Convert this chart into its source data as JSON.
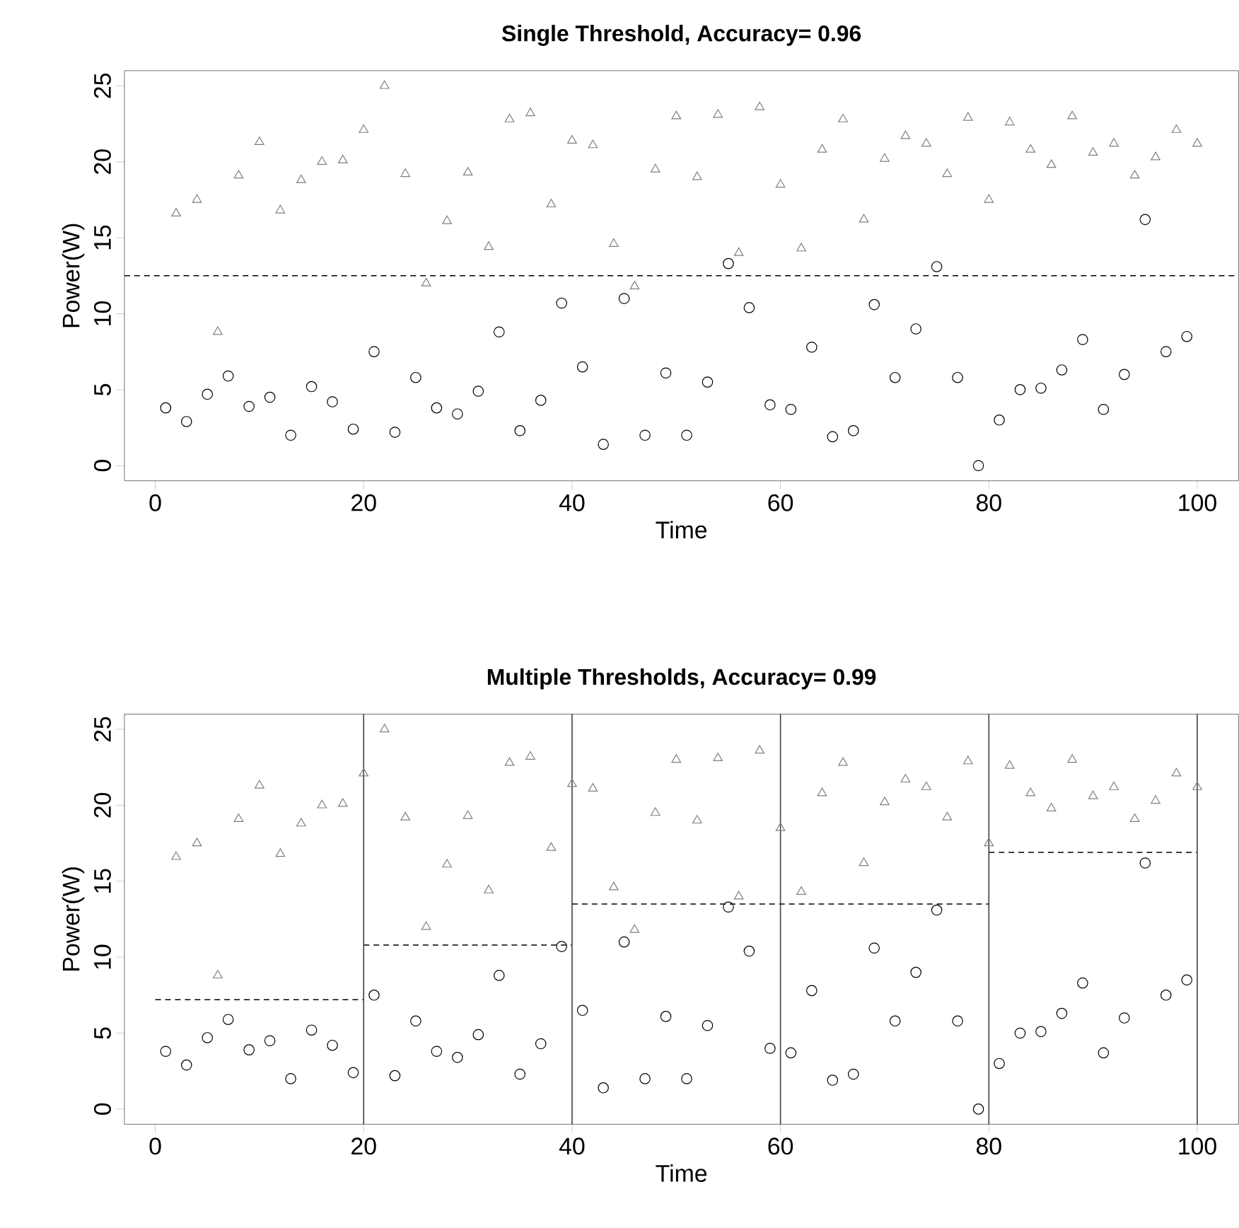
{
  "chart_data": [
    {
      "type": "scatter",
      "title": "Single Threshold, Accuracy= 0.96",
      "xlabel": "Time",
      "ylabel": "Power(W)",
      "xlim": [
        -2.96,
        103.96
      ],
      "ylim": [
        -1,
        26
      ],
      "xticks": [
        0,
        20,
        40,
        60,
        80,
        100
      ],
      "yticks": [
        0,
        5,
        10,
        15,
        20,
        25
      ],
      "series": [
        {
          "color": "#000000",
          "marker": "circle",
          "x": [
            1,
            3,
            5,
            7,
            9,
            11,
            13,
            15,
            17,
            19,
            21,
            23,
            25,
            27,
            29,
            31,
            33,
            35,
            37,
            39,
            41,
            43,
            45,
            47,
            49,
            51,
            53,
            55,
            57,
            59,
            61,
            63,
            65,
            67,
            69,
            71,
            73,
            75,
            77,
            79,
            81,
            83,
            85,
            87,
            89,
            91,
            93,
            95,
            97,
            99
          ],
          "values": [
            3.8,
            2.9,
            4.7,
            5.9,
            3.9,
            4.5,
            2.0,
            5.2,
            4.2,
            2.4,
            7.5,
            2.2,
            5.8,
            3.8,
            3.4,
            4.9,
            8.8,
            2.3,
            4.3,
            10.7,
            6.5,
            1.4,
            11.0,
            2.0,
            6.1,
            2.0,
            5.5,
            13.3,
            10.4,
            4.0,
            3.7,
            7.8,
            1.9,
            2.3,
            10.6,
            5.8,
            9.0,
            13.1,
            5.8,
            0.0,
            3.0,
            5.0,
            5.1,
            6.3,
            8.3,
            3.7,
            6.0,
            16.2,
            7.5,
            8.5
          ]
        },
        {
          "color": "#808080",
          "marker": "triangle",
          "x": [
            2,
            4,
            6,
            8,
            10,
            12,
            14,
            16,
            18,
            20,
            22,
            24,
            26,
            28,
            30,
            32,
            34,
            36,
            38,
            40,
            42,
            44,
            46,
            48,
            50,
            52,
            54,
            56,
            58,
            60,
            62,
            64,
            66,
            68,
            70,
            72,
            74,
            76,
            78,
            80,
            82,
            84,
            86,
            88,
            90,
            92,
            94,
            96,
            98,
            100
          ],
          "values": [
            16.6,
            17.5,
            8.8,
            19.1,
            21.3,
            16.8,
            18.8,
            20.0,
            20.1,
            22.1,
            25.0,
            19.2,
            12.0,
            16.1,
            19.3,
            14.4,
            22.8,
            23.2,
            17.2,
            21.4,
            21.1,
            14.6,
            11.8,
            19.5,
            23.0,
            19.0,
            23.1,
            14.0,
            23.6,
            18.5,
            14.3,
            20.8,
            22.8,
            16.2,
            20.2,
            21.7,
            21.2,
            19.2,
            22.9,
            17.5,
            22.6,
            20.8,
            19.8,
            23.0,
            20.6,
            21.2,
            19.1,
            20.3,
            22.1,
            21.2
          ]
        }
      ],
      "ref_lines": [
        {
          "axis": "y",
          "value": 12.5,
          "color": "#000000",
          "line_style": "dashed"
        }
      ]
    },
    {
      "type": "scatter",
      "title": "Multiple Thresholds, Accuracy= 0.99",
      "xlabel": "Time",
      "ylabel": "Power(W)",
      "xlim": [
        -2.96,
        103.96
      ],
      "ylim": [
        -1,
        26
      ],
      "xticks": [
        0,
        20,
        40,
        60,
        80,
        100
      ],
      "yticks": [
        0,
        5,
        10,
        15,
        20,
        25
      ],
      "series": [
        {
          "color": "#000000",
          "marker": "circle",
          "x": [
            1,
            3,
            5,
            7,
            9,
            11,
            13,
            15,
            17,
            19,
            21,
            23,
            25,
            27,
            29,
            31,
            33,
            35,
            37,
            39,
            41,
            43,
            45,
            47,
            49,
            51,
            53,
            55,
            57,
            59,
            61,
            63,
            65,
            67,
            69,
            71,
            73,
            75,
            77,
            79,
            81,
            83,
            85,
            87,
            89,
            91,
            93,
            95,
            97,
            99
          ],
          "values": [
            3.8,
            2.9,
            4.7,
            5.9,
            3.9,
            4.5,
            2.0,
            5.2,
            4.2,
            2.4,
            7.5,
            2.2,
            5.8,
            3.8,
            3.4,
            4.9,
            8.8,
            2.3,
            4.3,
            10.7,
            6.5,
            1.4,
            11.0,
            2.0,
            6.1,
            2.0,
            5.5,
            13.3,
            10.4,
            4.0,
            3.7,
            7.8,
            1.9,
            2.3,
            10.6,
            5.8,
            9.0,
            13.1,
            5.8,
            0.0,
            3.0,
            5.0,
            5.1,
            6.3,
            8.3,
            3.7,
            6.0,
            16.2,
            7.5,
            8.5
          ]
        },
        {
          "color": "#808080",
          "marker": "triangle",
          "x": [
            2,
            4,
            6,
            8,
            10,
            12,
            14,
            16,
            18,
            20,
            22,
            24,
            26,
            28,
            30,
            32,
            34,
            36,
            38,
            40,
            42,
            44,
            46,
            48,
            50,
            52,
            54,
            56,
            58,
            60,
            62,
            64,
            66,
            68,
            70,
            72,
            74,
            76,
            78,
            80,
            82,
            84,
            86,
            88,
            90,
            92,
            94,
            96,
            98,
            100
          ],
          "values": [
            16.6,
            17.5,
            8.8,
            19.1,
            21.3,
            16.8,
            18.8,
            20.0,
            20.1,
            22.1,
            25.0,
            19.2,
            12.0,
            16.1,
            19.3,
            14.4,
            22.8,
            23.2,
            17.2,
            21.4,
            21.1,
            14.6,
            11.8,
            19.5,
            23.0,
            19.0,
            23.1,
            14.0,
            23.6,
            18.5,
            14.3,
            20.8,
            22.8,
            16.2,
            20.2,
            21.7,
            21.2,
            19.2,
            22.9,
            17.5,
            22.6,
            20.8,
            19.8,
            23.0,
            20.6,
            21.2,
            19.1,
            20.3,
            22.1,
            21.2
          ]
        },
        {
          "type": "line",
          "color": "#000000",
          "marker": "none",
          "line_style": "dashed",
          "x": [
            0,
            20
          ],
          "values": [
            7.2,
            7.2
          ]
        },
        {
          "type": "line",
          "color": "#000000",
          "marker": "none",
          "line_style": "dashed",
          "x": [
            20,
            40
          ],
          "values": [
            10.8,
            10.8
          ]
        },
        {
          "type": "line",
          "color": "#000000",
          "marker": "none",
          "line_style": "dashed",
          "x": [
            40,
            60,
            80
          ],
          "values": [
            13.5,
            13.5,
            13.5
          ]
        },
        {
          "type": "line",
          "color": "#000000",
          "marker": "none",
          "line_style": "dashed",
          "x": [
            80,
            100
          ],
          "values": [
            16.9,
            16.9
          ]
        }
      ],
      "ref_lines": [
        {
          "axis": "x",
          "value": 20,
          "color": "#404040",
          "line_style": "solid"
        },
        {
          "axis": "x",
          "value": 40,
          "color": "#404040",
          "line_style": "solid"
        },
        {
          "axis": "x",
          "value": 60,
          "color": "#404040",
          "line_style": "solid"
        },
        {
          "axis": "x",
          "value": 80,
          "color": "#404040",
          "line_style": "solid"
        },
        {
          "axis": "x",
          "value": 100,
          "color": "#404040",
          "line_style": "solid"
        }
      ]
    }
  ]
}
